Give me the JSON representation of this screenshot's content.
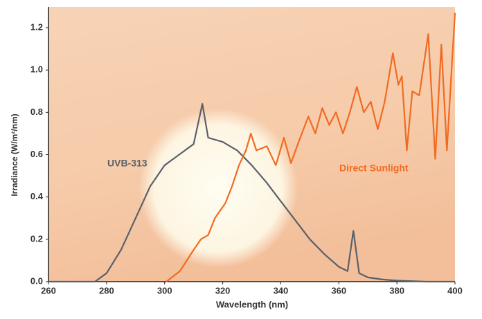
{
  "chart_data": {
    "type": "line",
    "x_label": "Wavelength (nm)",
    "y_label": "Irradiance (W/m²/nm)",
    "xlim": [
      260,
      400
    ],
    "xticks": [
      260,
      280,
      300,
      320,
      340,
      360,
      380,
      400
    ],
    "ylim": [
      0,
      1.2
    ],
    "yticks": [
      {
        "value": 0,
        "label": "0.0"
      },
      0.2,
      0.4,
      0.6,
      0.8,
      {
        "value": 1,
        "label": "1.0"
      },
      1.2
    ],
    "series": [
      {
        "name": "UVB-313",
        "color": "#59606a",
        "x": [
          260,
          276,
          280,
          285,
          290,
          295,
          300,
          305,
          310,
          313,
          315,
          320,
          325,
          330,
          335,
          340,
          345,
          350,
          355,
          360,
          363,
          365,
          367,
          370,
          375,
          380,
          390,
          400
        ],
        "values": [
          0,
          0,
          0.04,
          0.15,
          0.3,
          0.45,
          0.55,
          0.6,
          0.65,
          0.84,
          0.68,
          0.66,
          0.62,
          0.55,
          0.47,
          0.38,
          0.29,
          0.2,
          0.13,
          0.07,
          0.05,
          0.24,
          0.04,
          0.02,
          0.01,
          0.005,
          0,
          0
        ]
      },
      {
        "name": "Direct Sunlight",
        "color": "#f26a21",
        "x": [
          300.6,
          305.3,
          310,
          312.5,
          315,
          317.3,
          320.9,
          323.2,
          325.6,
          328,
          329.7,
          331.6,
          335.2,
          338.3,
          341.1,
          343.5,
          346.4,
          349.5,
          351.9,
          354.3,
          356.7,
          359,
          361.4,
          363.8,
          366.2,
          368.6,
          371,
          373.4,
          375.8,
          378.6,
          380.5,
          381.7,
          383.4,
          385.3,
          387.7,
          390.8,
          393.2,
          395.3,
          397.2,
          398.9,
          400
        ],
        "values": [
          0,
          0.05,
          0.15,
          0.2,
          0.22,
          0.3,
          0.37,
          0.45,
          0.55,
          0.62,
          0.7,
          0.62,
          0.64,
          0.55,
          0.68,
          0.56,
          0.67,
          0.78,
          0.7,
          0.82,
          0.74,
          0.8,
          0.7,
          0.8,
          0.92,
          0.8,
          0.85,
          0.72,
          0.85,
          1.08,
          0.93,
          0.97,
          0.62,
          0.9,
          0.88,
          1.17,
          0.58,
          1.12,
          0.62,
          1.02,
          1.27
        ]
      }
    ],
    "grid": false
  }
}
